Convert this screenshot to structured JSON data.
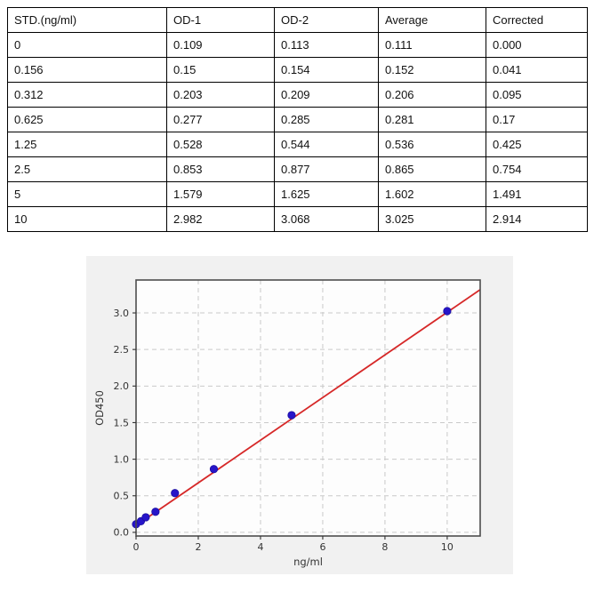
{
  "table": {
    "headers": [
      "STD.(ng/ml)",
      "OD-1",
      "OD-2",
      "Average",
      "Corrected"
    ],
    "rows": [
      [
        "0",
        "0.109",
        "0.113",
        "0.111",
        "0.000"
      ],
      [
        "0.156",
        "0.15",
        "0.154",
        "0.152",
        "0.041"
      ],
      [
        "0.312",
        "0.203",
        "0.209",
        "0.206",
        "0.095"
      ],
      [
        "0.625",
        "0.277",
        "0.285",
        "0.281",
        "0.17"
      ],
      [
        "1.25",
        "0.528",
        "0.544",
        "0.536",
        "0.425"
      ],
      [
        "2.5",
        "0.853",
        "0.877",
        "0.865",
        "0.754"
      ],
      [
        "5",
        "1.579",
        "1.625",
        "1.602",
        "1.491"
      ],
      [
        "10",
        "2.982",
        "3.068",
        "3.025",
        "2.914"
      ]
    ]
  },
  "chart_data": {
    "type": "scatter",
    "title": "",
    "xlabel": "ng/ml",
    "ylabel": "OD450",
    "x": [
      0,
      0.156,
      0.312,
      0.625,
      1.25,
      2.5,
      5,
      10
    ],
    "y": [
      0.111,
      0.152,
      0.206,
      0.281,
      0.536,
      0.865,
      1.602,
      3.025
    ],
    "fit_line": {
      "slope": 0.2915,
      "intercept": 0.094,
      "x_range": [
        0,
        11.06
      ]
    },
    "xlim": [
      0,
      11.06
    ],
    "ylim": [
      -0.05,
      3.45
    ],
    "xticks": [
      0,
      2,
      4,
      6,
      8,
      10
    ],
    "yticks": [
      0.0,
      0.5,
      1.0,
      1.5,
      2.0,
      2.5,
      3.0
    ],
    "grid": true,
    "legend": "none",
    "colors": {
      "line": "#d62828",
      "marker": "#2715c9",
      "marker_edge": "#1b0fa0",
      "figure_bg": "#f1f1f1",
      "plot_bg": "#fdfdfd",
      "grid": "#c9c9c9",
      "spine": "#4d4d4d",
      "text": "#333333"
    }
  }
}
